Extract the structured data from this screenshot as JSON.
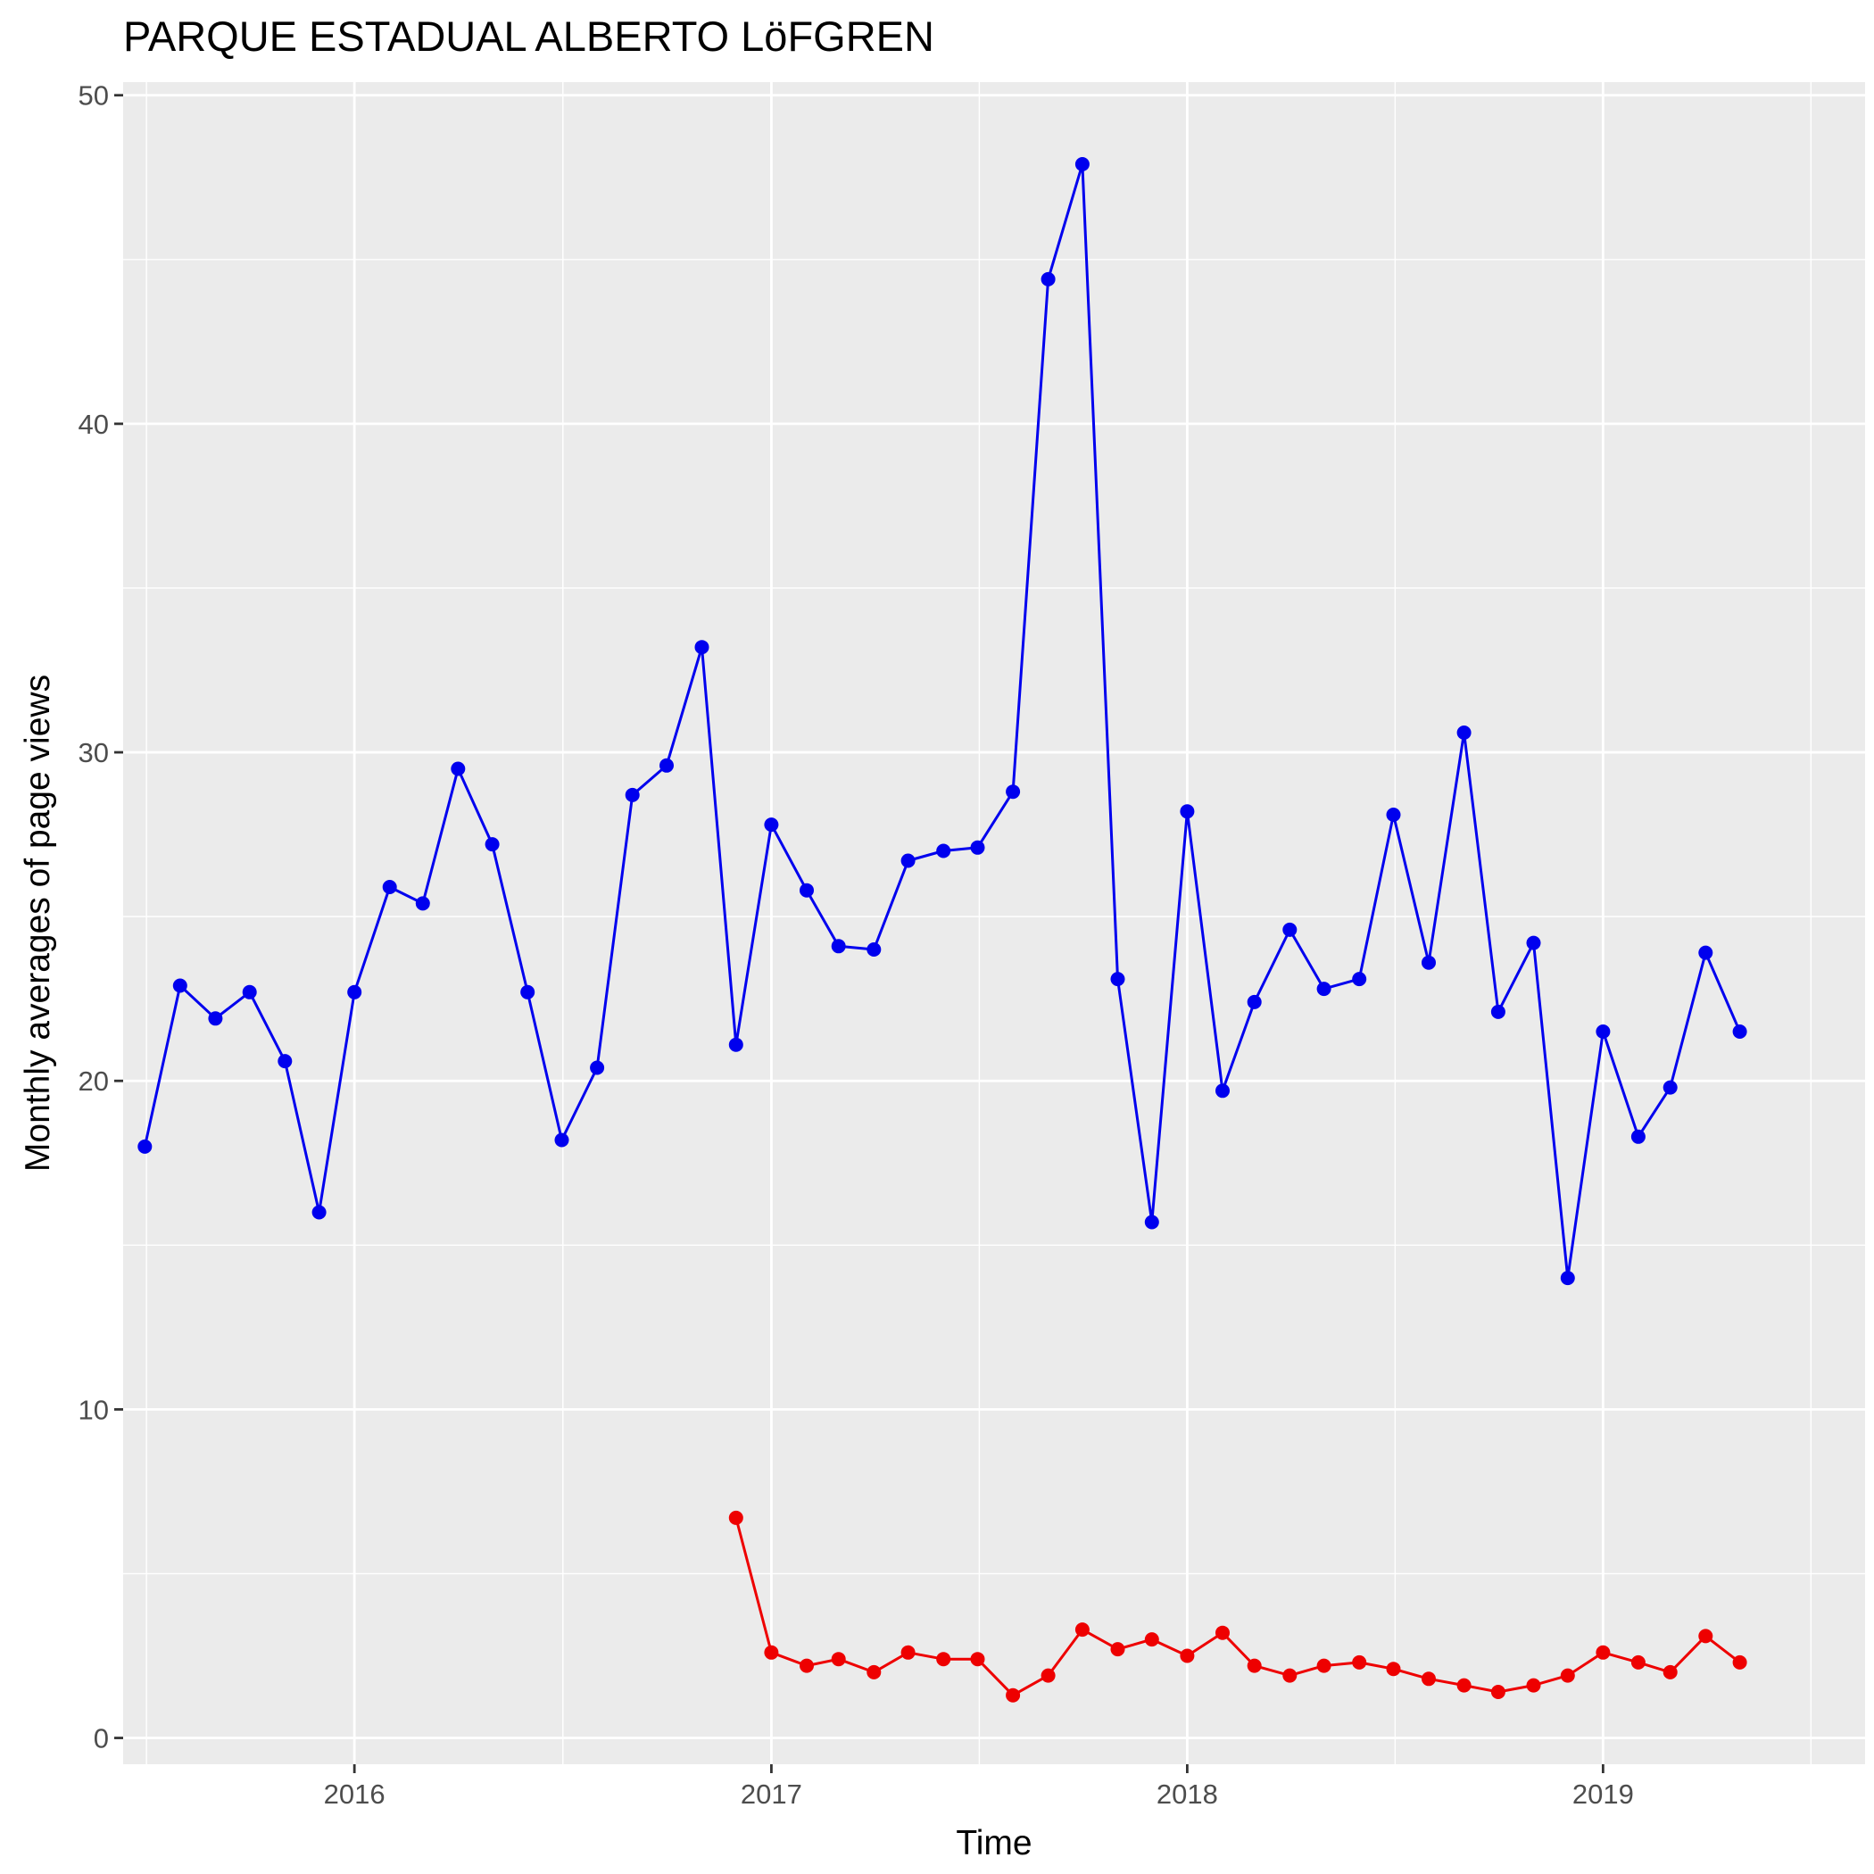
{
  "chart_data": {
    "type": "line",
    "title": "PARQUE ESTADUAL ALBERTO LöFGREN",
    "xlabel": "Time",
    "ylabel": "Monthly averages of page views",
    "x_ticks": [
      "2016",
      "2017",
      "2018",
      "2019"
    ],
    "y_ticks": [
      "0",
      "10",
      "20",
      "30",
      "40",
      "50"
    ],
    "xlim": [
      "2015-06-12",
      "2019-08-19"
    ],
    "ylim": [
      -0.8,
      50.4
    ],
    "grid": true,
    "legend": "none",
    "series": [
      {
        "color": "#0000ee",
        "points": [
          [
            "2015-07",
            18.0
          ],
          [
            "2015-08",
            22.9
          ],
          [
            "2015-09",
            21.9
          ],
          [
            "2015-10",
            22.7
          ],
          [
            "2015-11",
            20.6
          ],
          [
            "2015-12",
            16.0
          ],
          [
            "2016-01",
            22.7
          ],
          [
            "2016-02",
            25.9
          ],
          [
            "2016-03",
            25.4
          ],
          [
            "2016-04",
            29.5
          ],
          [
            "2016-05",
            27.2
          ],
          [
            "2016-06",
            22.7
          ],
          [
            "2016-07",
            18.2
          ],
          [
            "2016-08",
            20.4
          ],
          [
            "2016-09",
            28.7
          ],
          [
            "2016-10",
            29.6
          ],
          [
            "2016-11",
            33.2
          ],
          [
            "2016-12",
            21.1
          ],
          [
            "2017-01",
            27.8
          ],
          [
            "2017-02",
            25.8
          ],
          [
            "2017-03",
            24.1
          ],
          [
            "2017-04",
            24.0
          ],
          [
            "2017-05",
            26.7
          ],
          [
            "2017-06",
            27.0
          ],
          [
            "2017-07",
            27.1
          ],
          [
            "2017-08",
            28.8
          ],
          [
            "2017-09",
            44.4
          ],
          [
            "2017-10",
            47.9
          ],
          [
            "2017-11",
            23.1
          ],
          [
            "2017-12",
            15.7
          ],
          [
            "2018-01",
            28.2
          ],
          [
            "2018-02",
            19.7
          ],
          [
            "2018-03",
            22.4
          ],
          [
            "2018-04",
            24.6
          ],
          [
            "2018-05",
            22.8
          ],
          [
            "2018-06",
            23.1
          ],
          [
            "2018-07",
            28.1
          ],
          [
            "2018-08",
            23.6
          ],
          [
            "2018-09",
            30.6
          ],
          [
            "2018-10",
            22.1
          ],
          [
            "2018-11",
            24.2
          ],
          [
            "2018-12",
            14.0
          ],
          [
            "2019-01",
            21.5
          ],
          [
            "2019-02",
            18.3
          ],
          [
            "2019-03",
            19.8
          ],
          [
            "2019-04",
            23.9
          ],
          [
            "2019-05",
            21.5
          ]
        ]
      },
      {
        "color": "#ee0000",
        "points": [
          [
            "2016-12",
            6.7
          ],
          [
            "2017-01",
            2.6
          ],
          [
            "2017-02",
            2.2
          ],
          [
            "2017-03",
            2.4
          ],
          [
            "2017-04",
            2.0
          ],
          [
            "2017-05",
            2.6
          ],
          [
            "2017-06",
            2.4
          ],
          [
            "2017-07",
            2.4
          ],
          [
            "2017-08",
            1.3
          ],
          [
            "2017-09",
            1.9
          ],
          [
            "2017-10",
            3.3
          ],
          [
            "2017-11",
            2.7
          ],
          [
            "2017-12",
            3.0
          ],
          [
            "2018-01",
            2.5
          ],
          [
            "2018-02",
            3.2
          ],
          [
            "2018-03",
            2.2
          ],
          [
            "2018-04",
            1.9
          ],
          [
            "2018-05",
            2.2
          ],
          [
            "2018-06",
            2.3
          ],
          [
            "2018-07",
            2.1
          ],
          [
            "2018-08",
            1.8
          ],
          [
            "2018-09",
            1.6
          ],
          [
            "2018-10",
            1.4
          ],
          [
            "2018-11",
            1.6
          ],
          [
            "2018-12",
            1.9
          ],
          [
            "2019-01",
            2.6
          ],
          [
            "2019-02",
            2.3
          ],
          [
            "2019-03",
            2.0
          ],
          [
            "2019-04",
            3.1
          ],
          [
            "2019-05",
            2.3
          ]
        ]
      }
    ]
  }
}
